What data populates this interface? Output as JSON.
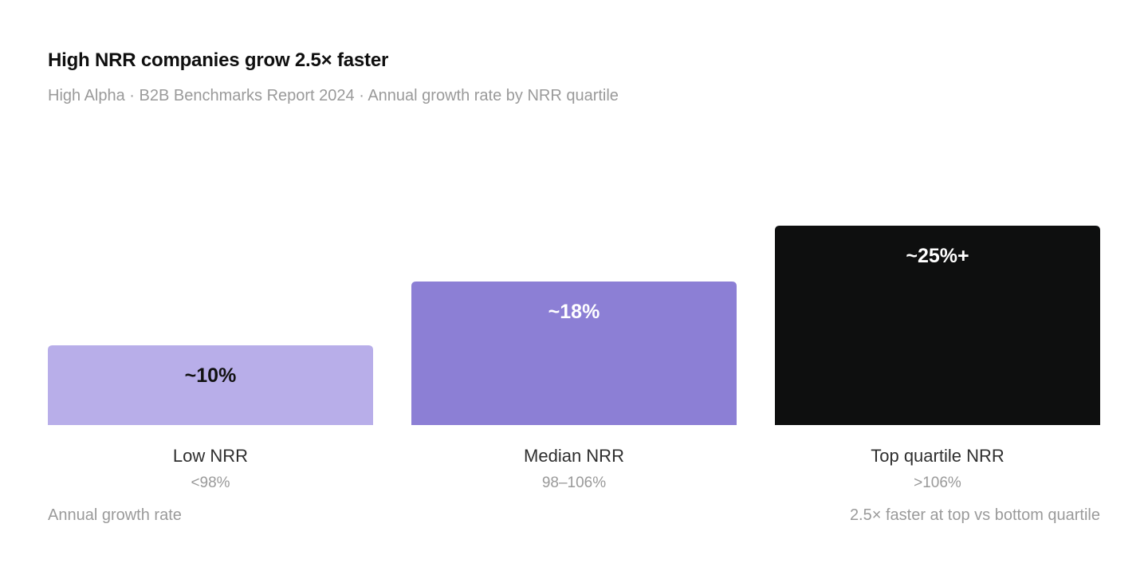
{
  "header": {
    "title": "High NRR companies grow 2.5× faster",
    "subtitle": "High Alpha · B2B Benchmarks Report 2024 · Annual growth rate by NRR quartile"
  },
  "footer": {
    "left_note": "Annual growth rate",
    "right_note": "2.5× faster at top vs bottom quartile"
  },
  "chart_data": {
    "type": "bar",
    "title": "High NRR companies grow 2.5× faster",
    "subtitle": "High Alpha · B2B Benchmarks Report 2024 · Annual growth rate by NRR quartile",
    "ylabel": "Annual growth rate",
    "ylim": [
      0,
      25
    ],
    "grid": false,
    "categories": [
      "Low NRR",
      "Median NRR",
      "Top quartile NRR"
    ],
    "ranges": [
      "<98%",
      "98–106%",
      ">106%"
    ],
    "values": [
      10,
      18,
      25
    ],
    "value_labels": [
      "~10%",
      "~18%",
      "~25%+"
    ],
    "colors": [
      "#b8aee9",
      "#8c7fd5",
      "#0e0f0f"
    ],
    "label_colors": [
      "#111111",
      "#ffffff",
      "#ffffff"
    ]
  }
}
